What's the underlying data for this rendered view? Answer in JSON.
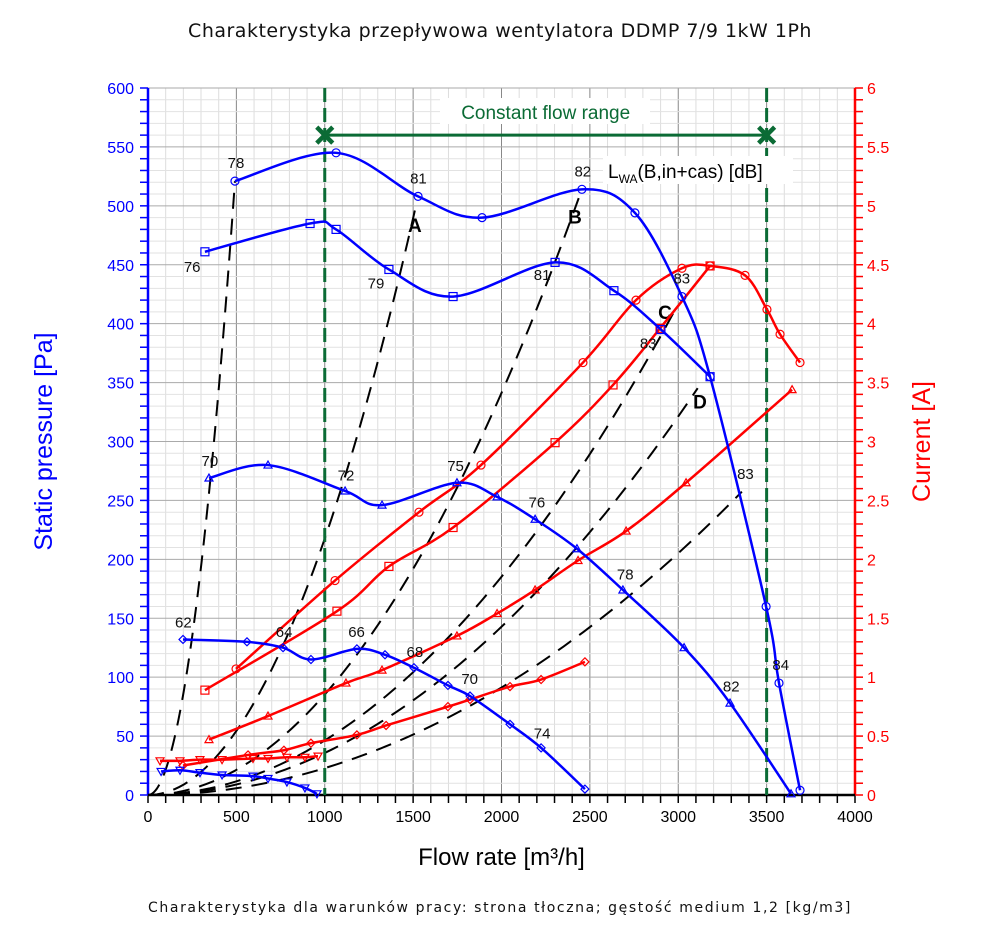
{
  "chart_data": {
    "type": "line",
    "title": "Charakterystyka przepływowa wentylatora DDMP 7/9 1kW 1Ph",
    "footer": "Charakterystyka dla warunków pracy: strona tłoczna; gęstość medium 1,2 [kg/m3]",
    "xlabel": "Flow rate [m³/h]",
    "ylabel": "Static pressure [Pa]",
    "y2label": "Current [A]",
    "xlim": [
      0,
      4000
    ],
    "ylim": [
      0,
      600
    ],
    "y2lim": [
      0,
      6
    ],
    "xticks": [
      "0",
      "500",
      "1000",
      "1500",
      "2000",
      "2500",
      "3000",
      "3500",
      "4000"
    ],
    "yticks": [
      "0",
      "50",
      "100",
      "150",
      "200",
      "250",
      "300",
      "350",
      "400",
      "450",
      "500",
      "550",
      "600"
    ],
    "y2ticks": [
      "0",
      "0.5",
      "1",
      "1.5",
      "2",
      "2.5",
      "3",
      "3.5",
      "4",
      "4.5",
      "5",
      "5.5",
      "6"
    ],
    "grid": true,
    "colors": {
      "pressure": "#0000ff",
      "current": "#ff0000",
      "system": "#000000",
      "range": "#0b6b35"
    },
    "constant_flow_range": {
      "label": "Constant flow range",
      "from": 1000,
      "to": 3500,
      "marker_y": 560
    },
    "noise_legend": "LWA(B,in+cas) [dB]",
    "pressure_series": [
      {
        "name": "pressure-1",
        "marker": "circle",
        "points": [
          [
            492,
            521
          ],
          [
            1064,
            545
          ],
          [
            1528,
            508
          ],
          [
            1890,
            490
          ],
          [
            2455,
            514
          ],
          [
            2755,
            494
          ],
          [
            3021,
            423
          ],
          [
            3180,
            355
          ],
          [
            3497,
            160
          ],
          [
            3570,
            95
          ],
          [
            3689,
            4
          ]
        ],
        "labels": [
          {
            "text": "78",
            "x": 498,
            "y": 532
          },
          {
            "text": "81",
            "x": 1530,
            "y": 519
          },
          {
            "text": "82",
            "x": 2460,
            "y": 525
          },
          {
            "text": "83",
            "x": 3020,
            "y": 434
          },
          {
            "text": "84",
            "x": 3580,
            "y": 106
          }
        ]
      },
      {
        "name": "pressure-2",
        "marker": "square",
        "points": [
          [
            322,
            461
          ],
          [
            917,
            485
          ],
          [
            1064,
            480
          ],
          [
            1363,
            446
          ],
          [
            1726,
            423
          ],
          [
            2303,
            452
          ],
          [
            2636,
            428
          ],
          [
            2902,
            395
          ],
          [
            3180,
            355
          ]
        ],
        "labels": [
          {
            "text": "76",
            "x": 250,
            "y": 444
          },
          {
            "text": "79",
            "x": 1290,
            "y": 430
          },
          {
            "text": "81",
            "x": 2230,
            "y": 437
          },
          {
            "text": "83",
            "x": 2830,
            "y": 379
          }
        ]
      },
      {
        "name": "pressure-3",
        "marker": "triangle",
        "points": [
          [
            345,
            269
          ],
          [
            679,
            280
          ],
          [
            1115,
            258
          ],
          [
            1324,
            246
          ],
          [
            1748,
            265
          ],
          [
            1975,
            253
          ],
          [
            2190,
            234
          ],
          [
            2427,
            209
          ],
          [
            2687,
            174
          ],
          [
            3033,
            125
          ],
          [
            3293,
            78
          ],
          [
            3638,
            1
          ]
        ],
        "labels": [
          {
            "text": "70",
            "x": 350,
            "y": 279
          },
          {
            "text": "72",
            "x": 1120,
            "y": 267
          },
          {
            "text": "75",
            "x": 1740,
            "y": 275
          },
          {
            "text": "76",
            "x": 2200,
            "y": 244
          },
          {
            "text": "78",
            "x": 2700,
            "y": 183
          },
          {
            "text": "82",
            "x": 3300,
            "y": 88
          },
          {
            "text": "83",
            "x": 3380,
            "y": 268
          }
        ]
      },
      {
        "name": "pressure-4",
        "marker": "diamond",
        "points": [
          [
            198,
            132
          ],
          [
            560,
            130
          ],
          [
            764,
            125
          ],
          [
            922,
            115
          ],
          [
            1182,
            124
          ],
          [
            1341,
            119
          ],
          [
            1505,
            108
          ],
          [
            1697,
            93
          ],
          [
            1822,
            84
          ],
          [
            2048,
            60
          ],
          [
            2224,
            40
          ],
          [
            2472,
            5
          ]
        ],
        "labels": [
          {
            "text": "62",
            "x": 200,
            "y": 142
          },
          {
            "text": "64",
            "x": 770,
            "y": 134
          },
          {
            "text": "66",
            "x": 1180,
            "y": 134
          },
          {
            "text": "68",
            "x": 1510,
            "y": 117
          },
          {
            "text": "70",
            "x": 1820,
            "y": 94
          },
          {
            "text": "74",
            "x": 2230,
            "y": 48
          }
        ]
      },
      {
        "name": "pressure-5",
        "marker": "down-triangle",
        "points": [
          [
            74,
            20
          ],
          [
            181,
            21
          ],
          [
            294,
            19
          ],
          [
            419,
            17
          ],
          [
            594,
            16
          ],
          [
            679,
            14
          ],
          [
            786,
            11
          ],
          [
            888,
            6
          ],
          [
            956,
            1
          ]
        ],
        "labels": []
      }
    ],
    "current_series": [
      {
        "name": "current-1",
        "marker": "circle",
        "points": [
          [
            498,
            1.07
          ],
          [
            1058,
            1.82
          ],
          [
            1533,
            2.4
          ],
          [
            1884,
            2.8
          ],
          [
            2461,
            3.67
          ],
          [
            2761,
            4.2
          ],
          [
            3021,
            4.47
          ],
          [
            3180,
            4.49
          ],
          [
            3378,
            4.41
          ],
          [
            3502,
            4.12
          ],
          [
            3576,
            3.91
          ],
          [
            3689,
            3.67
          ]
        ]
      },
      {
        "name": "current-2",
        "marker": "square",
        "points": [
          [
            322,
            0.89
          ],
          [
            1069,
            1.56
          ],
          [
            1363,
            1.94
          ],
          [
            1726,
            2.27
          ],
          [
            2303,
            2.99
          ],
          [
            2631,
            3.48
          ],
          [
            2897,
            3.96
          ],
          [
            3180,
            4.49
          ]
        ]
      },
      {
        "name": "current-3",
        "marker": "triangle",
        "points": [
          [
            345,
            0.47
          ],
          [
            679,
            0.67
          ],
          [
            1120,
            0.95
          ],
          [
            1324,
            1.06
          ],
          [
            1748,
            1.35
          ],
          [
            1975,
            1.54
          ],
          [
            2190,
            1.74
          ],
          [
            2433,
            1.99
          ],
          [
            2705,
            2.24
          ],
          [
            3044,
            2.65
          ],
          [
            3644,
            3.44
          ]
        ]
      },
      {
        "name": "current-4",
        "marker": "diamond",
        "points": [
          [
            198,
            0.25
          ],
          [
            566,
            0.34
          ],
          [
            769,
            0.38
          ],
          [
            922,
            0.44
          ],
          [
            1182,
            0.51
          ],
          [
            1347,
            0.59
          ],
          [
            1697,
            0.75
          ],
          [
            1822,
            0.81
          ],
          [
            2048,
            0.92
          ],
          [
            2224,
            0.98
          ],
          [
            2472,
            1.13
          ]
        ]
      },
      {
        "name": "current-5",
        "marker": "down-triangle",
        "points": [
          [
            68,
            0.29
          ],
          [
            181,
            0.29
          ],
          [
            294,
            0.3
          ],
          [
            419,
            0.3
          ],
          [
            594,
            0.31
          ],
          [
            679,
            0.31
          ],
          [
            786,
            0.32
          ],
          [
            888,
            0.32
          ],
          [
            962,
            0.33
          ]
        ]
      }
    ],
    "system_curves": [
      {
        "name": "system-1",
        "label": "",
        "k": 0.002152,
        "x_end": 492
      },
      {
        "name": "system-A",
        "label": "A",
        "k": 0.0002176,
        "x_end": 1520,
        "label_x": 1510,
        "label_y": 478
      },
      {
        "name": "system-B",
        "label": "B",
        "k": 8.53e-05,
        "x_end": 2440,
        "label_x": 2416,
        "label_y": 485
      },
      {
        "name": "system-C",
        "label": "C",
        "k": 4.63e-05,
        "x_end": 2990,
        "label_x": 2925,
        "label_y": 404
      },
      {
        "name": "system-D",
        "label": "D",
        "k": 3.57e-05,
        "x_end": 3110,
        "label_x": 3123,
        "label_y": 328
      },
      {
        "name": "system-6",
        "label": "",
        "k": 2.28e-05,
        "x_end": 3360
      }
    ]
  }
}
